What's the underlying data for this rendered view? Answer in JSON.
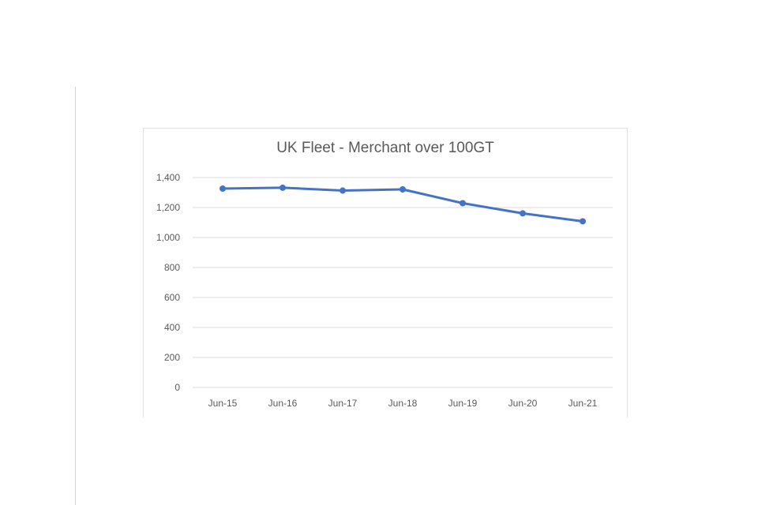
{
  "chart_data": {
    "type": "line",
    "title": "UK Fleet - Merchant over 100GT",
    "xlabel": "",
    "ylabel": "",
    "categories": [
      "Jun-15",
      "Jun-16",
      "Jun-17",
      "Jun-18",
      "Jun-19",
      "Jun-20",
      "Jun-21"
    ],
    "series": [
      {
        "name": "Merchant over 100GT",
        "values": [
          1326,
          1332,
          1313,
          1321,
          1229,
          1161,
          1108
        ],
        "color": "#4472c4"
      }
    ],
    "ylim": [
      0,
      1400
    ],
    "yticks": [
      0,
      200,
      400,
      600,
      800,
      1000,
      1200,
      1400
    ],
    "ytick_labels": [
      "0",
      "200",
      "400",
      "600",
      "800",
      "1,000",
      "1,200",
      "1,400"
    ],
    "grid": true,
    "legend": "none"
  }
}
